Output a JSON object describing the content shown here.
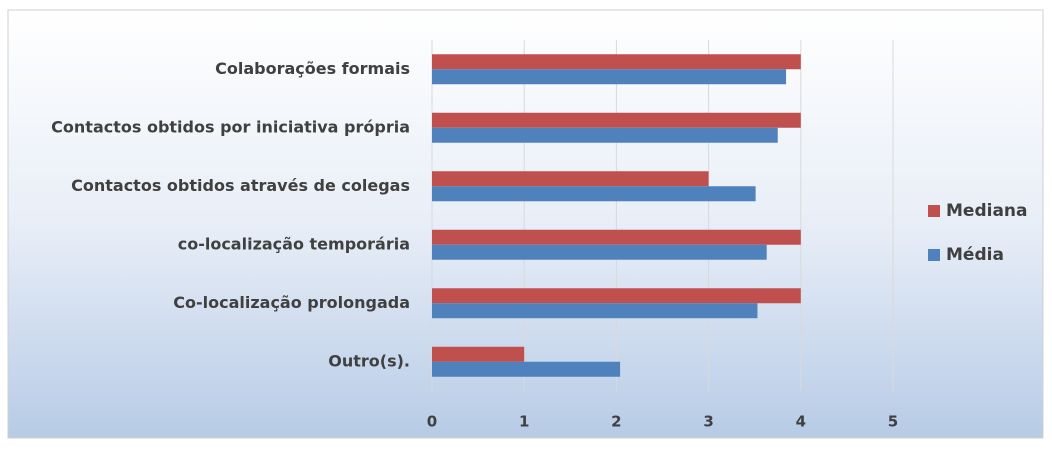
{
  "chart_data": {
    "type": "bar",
    "orientation": "horizontal",
    "categories": [
      "Colaborações formais",
      "Contactos obtidos por iniciativa própria",
      "Contactos obtidos através de colegas",
      "co-localização temporária",
      "Co-localização prolongada",
      "Outro(s)."
    ],
    "series": [
      {
        "name": "Mediana",
        "color": "#c0504d",
        "values": [
          4,
          4,
          3,
          4,
          4,
          1
        ]
      },
      {
        "name": "Média",
        "color": "#4f81bd",
        "values": [
          3.84,
          3.75,
          3.51,
          3.63,
          3.53,
          2.04
        ]
      }
    ],
    "xlim": [
      0,
      5
    ],
    "xticks": [
      0,
      1,
      2,
      3,
      4,
      5
    ],
    "grid": true,
    "legend": "right"
  }
}
